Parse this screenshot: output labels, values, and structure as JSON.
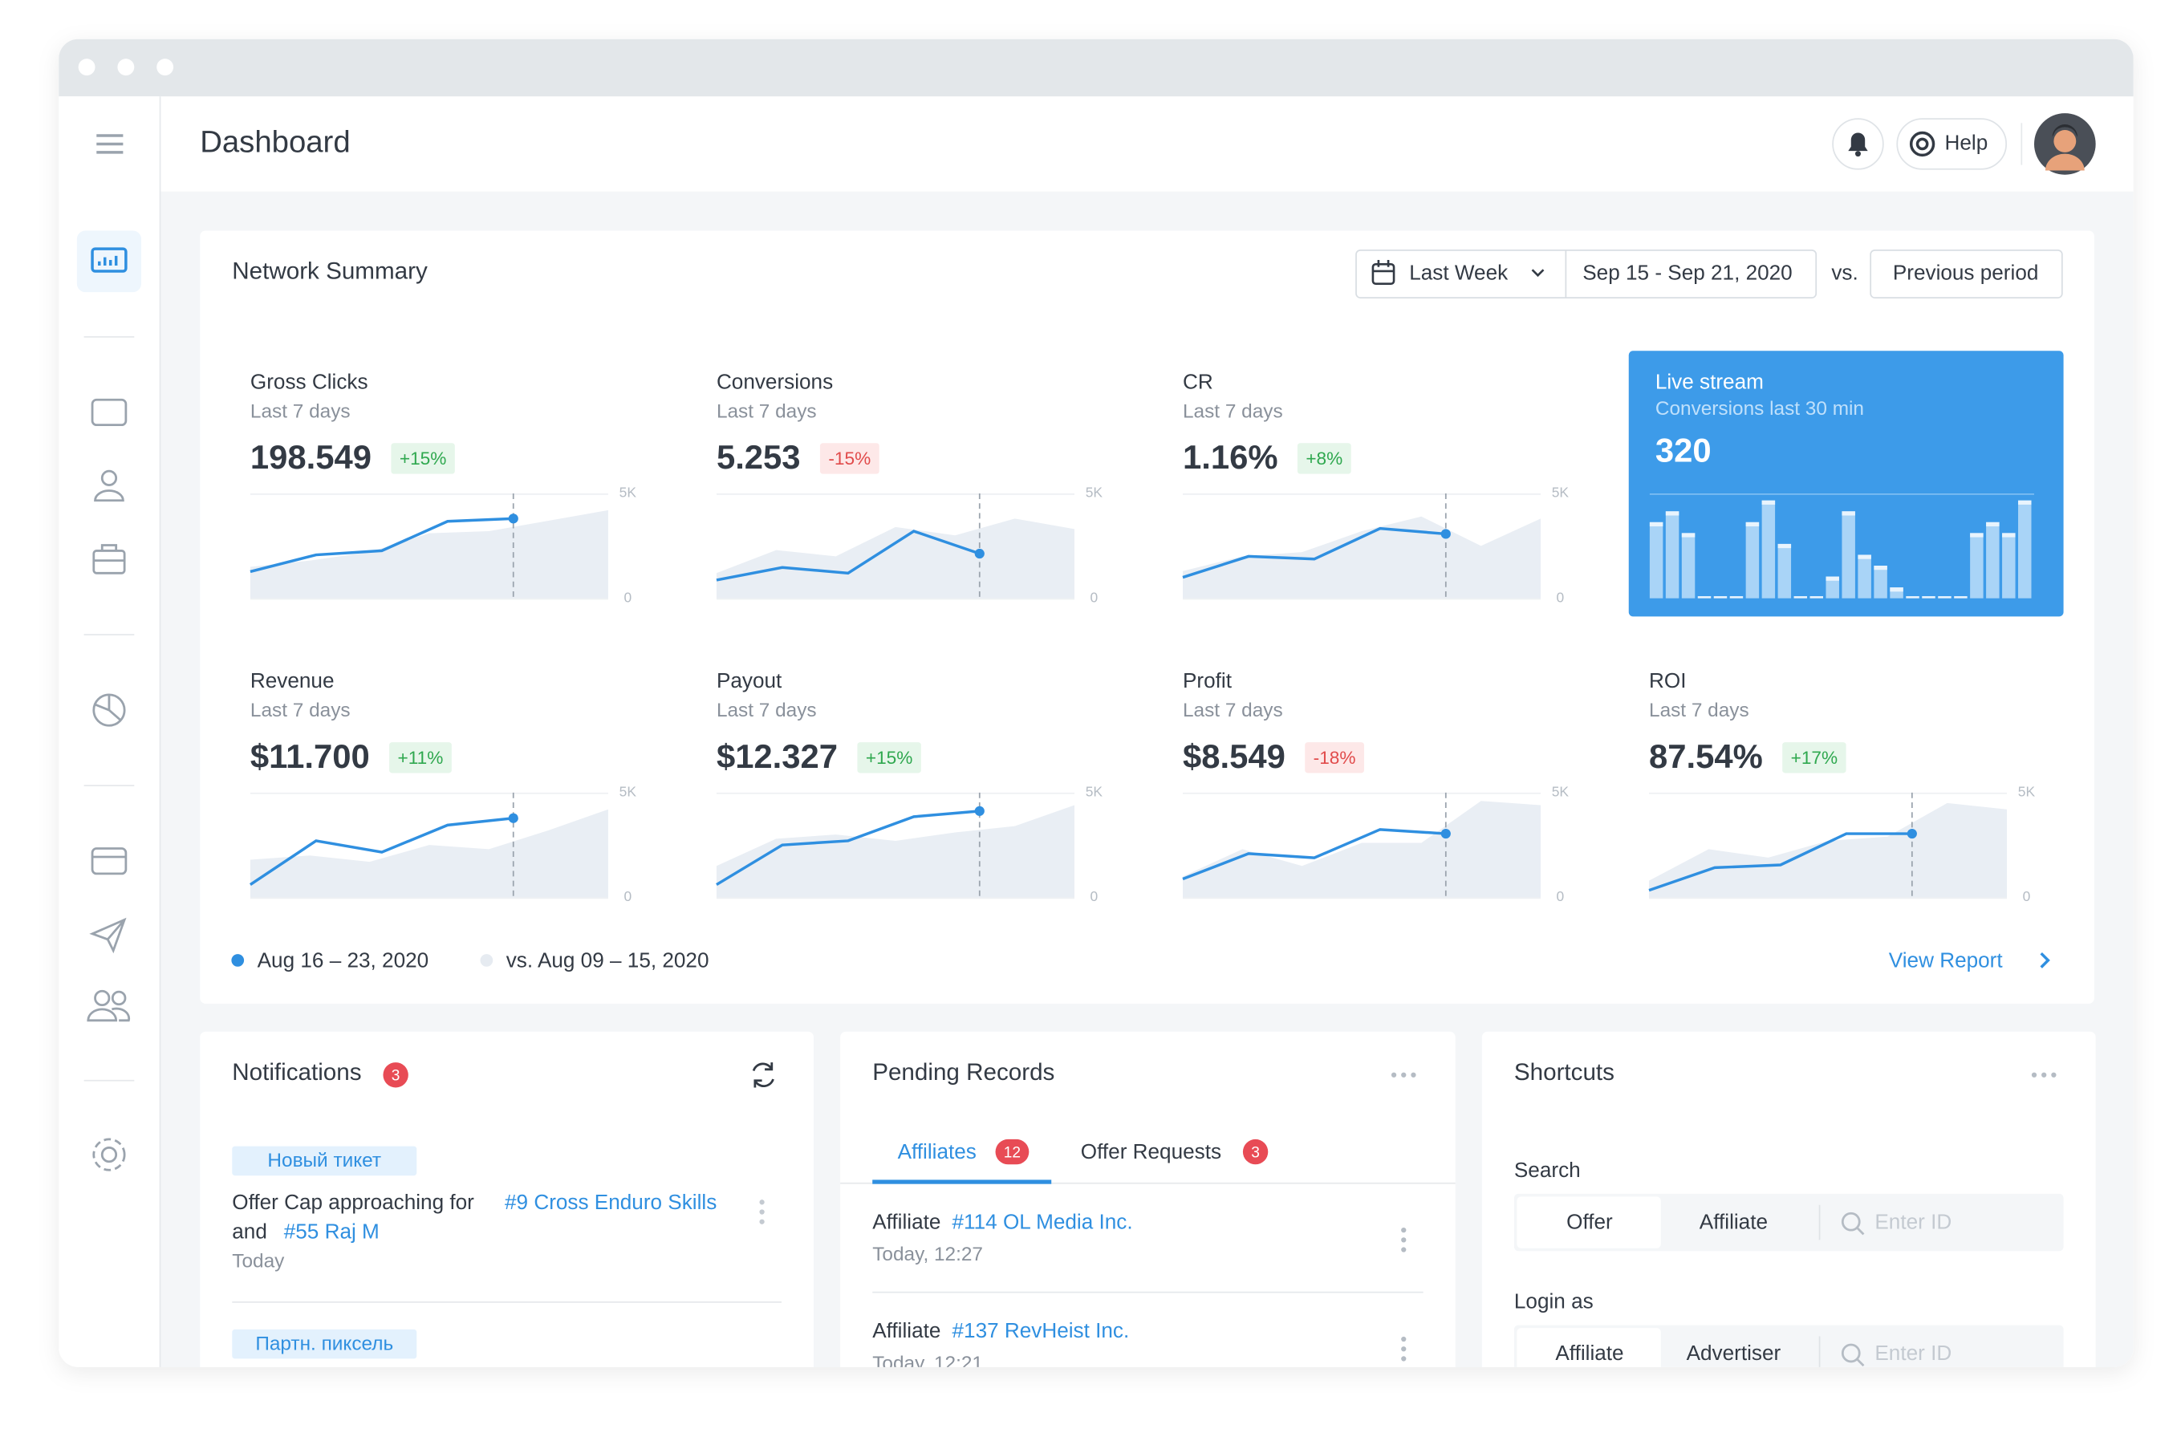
{
  "header": {
    "title": "Dashboard",
    "help": "Help"
  },
  "network_summary": {
    "title": "Network Summary",
    "period": "Last Week",
    "date_range": "Sep 15 - Sep 21, 2020",
    "vs": "vs.",
    "compare": "Previous period",
    "metrics": [
      {
        "label": "Gross Clicks",
        "subtitle": "Last 7 days",
        "value": "198.549",
        "delta": "+15%",
        "chart": {
          "type": "line",
          "ylim": [
            0,
            5000
          ],
          "yticks": [
            {
              "value": 5000,
              "label": "5K"
            },
            0
          ],
          "line": [
            1270,
            2070,
            2270,
            3670,
            3800
          ],
          "area": [
            1500,
            1800,
            2200,
            3100,
            3200,
            3700,
            4200
          ]
        }
      },
      {
        "label": "Conversions",
        "subtitle": "Last 7 days",
        "value": "5.253",
        "delta": "-15%",
        "chart": {
          "type": "line",
          "ylim": [
            0,
            5000
          ],
          "yticks": [
            {
              "value": 5000,
              "label": "5K"
            },
            0
          ],
          "line": [
            870,
            1470,
            1200,
            3200,
            2130
          ],
          "area": [
            1200,
            2300,
            2000,
            3400,
            3000,
            3800,
            3300
          ]
        }
      },
      {
        "label": "CR",
        "subtitle": "Last 7 days",
        "value": "1.16%",
        "delta": "+8%",
        "chart": {
          "type": "line",
          "ylim": [
            0,
            5000
          ],
          "yticks": [
            {
              "value": 5000,
              "label": "5K"
            },
            0
          ],
          "line": [
            1000,
            2000,
            1870,
            3330,
            3070
          ],
          "area": [
            1300,
            2000,
            2200,
            3200,
            3900,
            2500,
            3800
          ]
        }
      },
      {
        "label": "Revenue",
        "subtitle": "Last 7 days",
        "value": "$11.700",
        "delta": "+11%",
        "chart": {
          "type": "line",
          "ylim": [
            0,
            5000
          ],
          "yticks": [
            {
              "value": 5000,
              "label": "5K"
            },
            0
          ],
          "line": [
            610,
            2700,
            2160,
            3450,
            3780
          ],
          "area": [
            1800,
            2000,
            1700,
            2500,
            2300,
            3200,
            4200
          ]
        }
      },
      {
        "label": "Payout",
        "subtitle": "Last 7 days",
        "value": "$12.327",
        "delta": "+15%",
        "chart": {
          "type": "line",
          "ylim": [
            0,
            5000
          ],
          "yticks": [
            {
              "value": 5000,
              "label": "5K"
            },
            0
          ],
          "line": [
            610,
            2500,
            2700,
            3850,
            4120
          ],
          "area": [
            1500,
            2800,
            3000,
            2700,
            3100,
            3400,
            4400
          ]
        }
      },
      {
        "label": "Profit",
        "subtitle": "Last 7 days",
        "value": "$8.549",
        "delta": "-18%",
        "chart": {
          "type": "line",
          "ylim": [
            0,
            5000
          ],
          "yticks": [
            {
              "value": 5000,
              "label": "5K"
            },
            0
          ],
          "line": [
            880,
            2090,
            1890,
            3240,
            3040
          ],
          "area": [
            1000,
            2300,
            1500,
            2600,
            2600,
            4600,
            4400
          ]
        }
      },
      {
        "label": "ROI",
        "subtitle": "Last 7 days",
        "value": "87.54%",
        "delta": "+17%",
        "chart": {
          "type": "line",
          "ylim": [
            0,
            5000
          ],
          "yticks": [
            {
              "value": 5000,
              "label": "5K"
            },
            0
          ],
          "line": [
            340,
            1420,
            1550,
            3040,
            3040
          ],
          "area": [
            800,
            2300,
            1900,
            2700,
            2900,
            4500,
            4200
          ]
        }
      }
    ],
    "live_stream": {
      "title": "Live stream",
      "subtitle": "Conversions last 30 min",
      "value": "320",
      "chart": {
        "type": "bar",
        "values": [
          7,
          8,
          6,
          0,
          0,
          0,
          7,
          9,
          5,
          0,
          0,
          2,
          8,
          4,
          3,
          1,
          0,
          0,
          0,
          0,
          6,
          7,
          6,
          9
        ]
      }
    },
    "legend": [
      "Aug 16 – 23, 2020",
      "vs. Aug 09 – 15, 2020"
    ],
    "view_report": "View Report"
  },
  "notifications": {
    "title": "Notifications",
    "count": 3,
    "items": [
      {
        "tag": "Новый тикет",
        "text": "Offer Cap approaching for",
        "link": "#9 Cross Enduro Skills",
        "text2": "and",
        "link2": "#55 Raj M",
        "time": "Today"
      },
      {
        "tag": "Партн. пиксель"
      }
    ]
  },
  "pending": {
    "title": "Pending Records",
    "tabs": [
      {
        "label": "Affiliates",
        "count": 12
      },
      {
        "label": "Offer Requests",
        "count": 3
      }
    ],
    "records": [
      {
        "text": "Affiliate",
        "link": "#114 OL Media Inc.",
        "time": "Today, 12:27"
      },
      {
        "text": "Affiliate",
        "link": "#137 RevHeist Inc.",
        "time": "Today, 12:21"
      }
    ]
  },
  "shortcuts": {
    "title": "Shortcuts",
    "groups": [
      {
        "label": "Search",
        "options": [
          "Offer",
          "Affiliate"
        ],
        "placeholder": "Enter ID"
      },
      {
        "label": "Login as",
        "options": [
          "Affiliate",
          "Advertiser"
        ],
        "placeholder": "Enter ID"
      }
    ]
  }
}
